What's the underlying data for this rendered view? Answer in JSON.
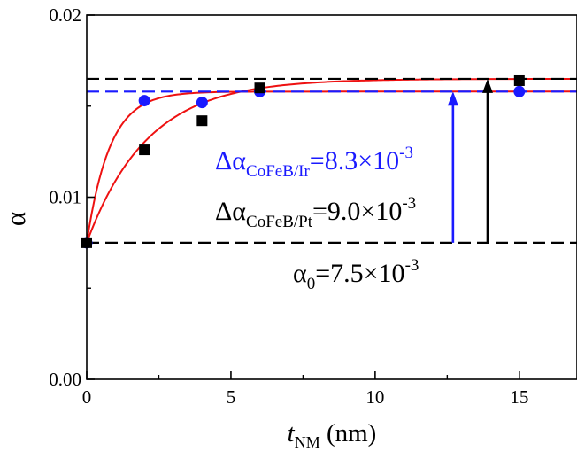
{
  "chart_data": {
    "type": "scatter",
    "xlabel_main": "t",
    "xlabel_sub": "NM",
    "xlabel_unit": " (nm)",
    "ylabel": "α",
    "xlim": [
      0,
      17
    ],
    "ylim": [
      0.0,
      0.02
    ],
    "x_ticks": [
      0,
      5,
      10,
      15
    ],
    "x_tick_labels": [
      "0",
      "5",
      "10",
      "15"
    ],
    "y_ticks": [
      0.0,
      0.01,
      0.02
    ],
    "y_tick_labels": [
      "0.00",
      "0.01",
      "0.02"
    ],
    "grid": false,
    "series": [
      {
        "marker": "circle",
        "color": "#1a1aff",
        "x": [
          0,
          2,
          4,
          6,
          15
        ],
        "y": [
          0.0075,
          0.0153,
          0.0152,
          0.0158,
          0.0158
        ]
      },
      {
        "marker": "square",
        "color": "#000000",
        "x": [
          0,
          2,
          4,
          6,
          15
        ],
        "y": [
          0.0075,
          0.0126,
          0.0142,
          0.016,
          0.0164
        ]
      }
    ],
    "fits": [
      {
        "color": "#ee1111",
        "y0": 0.0075,
        "ysat": 0.0158,
        "tau": 0.8
      },
      {
        "color": "#ee1111",
        "y0": 0.0075,
        "ysat": 0.0165,
        "tau": 2.1
      }
    ],
    "reference_lines": [
      {
        "y": 0.0075,
        "color": "#000000",
        "style": "dashed"
      },
      {
        "y": 0.0158,
        "color": "#1a1aff",
        "style": "dashed"
      },
      {
        "y": 0.0165,
        "color": "#000000",
        "style": "dashed"
      }
    ],
    "arrows": [
      {
        "x": 12.7,
        "y_from": 0.0075,
        "y_to": 0.0158,
        "color": "#1a1aff"
      },
      {
        "x": 13.9,
        "y_from": 0.0075,
        "y_to": 0.0165,
        "color": "#000000"
      }
    ],
    "annotations": {
      "ir": {
        "prefix": "Δα",
        "sub": "CoFeB/Ir",
        "eq": "=8.3×10",
        "exp": "-3",
        "color": "#1a1aff"
      },
      "pt": {
        "prefix": "Δα",
        "sub": "CoFeB/Pt",
        "eq": "=9.0×10",
        "exp": "-3",
        "color": "#000000"
      },
      "a0": {
        "prefix": "α",
        "sub": "0",
        "eq": "=7.5×10",
        "exp": "-3",
        "color": "#000000"
      }
    }
  }
}
